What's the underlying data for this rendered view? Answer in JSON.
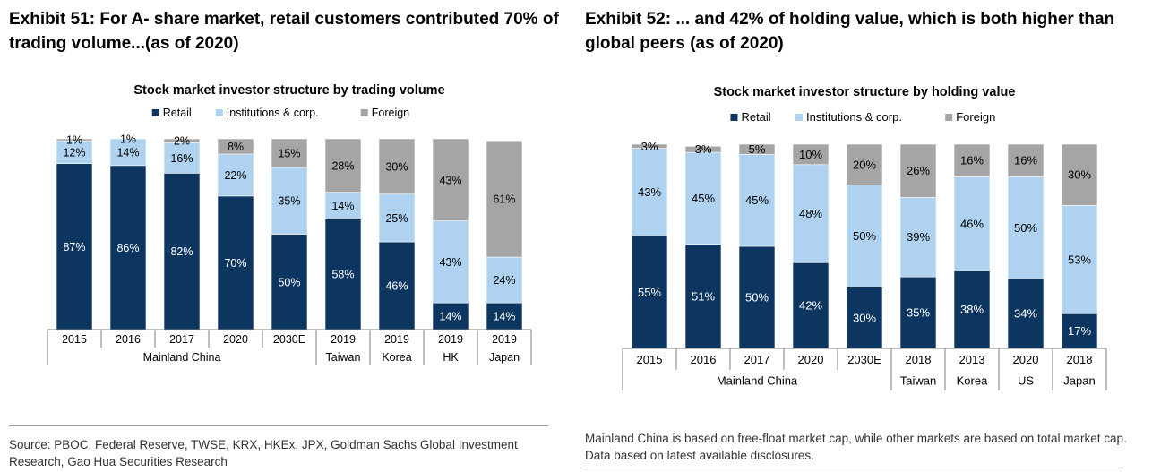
{
  "left": {
    "exhibit_title": "Exhibit 51: For A- share market, retail customers contributed 70% of trading volume...(as of 2020)",
    "footnote": "Source: PBOC, Federal Reserve, TWSE, KRX, HKEx, JPX, Goldman Sachs Global Investment Research, Gao Hua Securities Research"
  },
  "right": {
    "exhibit_title": "Exhibit 52: ... and 42% of holding value, which is both higher than global peers (as of 2020)",
    "footnote": "Mainland China is based on free-float market cap, while other markets are based on total market cap. Data based on latest available disclosures."
  },
  "colors": {
    "retail": "#0c3660",
    "institutions": "#aed2f0",
    "foreign": "#a5a5a5"
  },
  "chart_data": [
    {
      "type": "bar",
      "stacked": true,
      "title": "Stock market investor structure by trading volume",
      "legend": [
        "Retail",
        "Institutions & corp.",
        "Foreign"
      ],
      "legend_position": "top",
      "categories": [
        "2015",
        "2016",
        "2017",
        "2020",
        "2030E",
        "2019",
        "2019",
        "2019",
        "2019"
      ],
      "groups": [
        {
          "label": "Mainland China",
          "span": 5
        },
        {
          "label": "Taiwan",
          "span": 1
        },
        {
          "label": "Korea",
          "span": 1
        },
        {
          "label": "HK",
          "span": 1
        },
        {
          "label": "Japan",
          "span": 1
        }
      ],
      "series": [
        {
          "name": "Retail",
          "values": [
            87,
            86,
            82,
            70,
            50,
            58,
            46,
            14,
            14
          ]
        },
        {
          "name": "Institutions & corp.",
          "values": [
            12,
            14,
            16,
            22,
            35,
            14,
            25,
            43,
            24
          ]
        },
        {
          "name": "Foreign",
          "values": [
            1,
            1,
            2,
            8,
            15,
            28,
            30,
            43,
            61
          ]
        }
      ],
      "ylim": [
        0,
        100
      ]
    },
    {
      "type": "bar",
      "stacked": true,
      "title": "Stock market investor structure by holding value",
      "legend": [
        "Retail",
        "Institutions & corp.",
        "Foreign"
      ],
      "legend_position": "top",
      "categories": [
        "2015",
        "2016",
        "2017",
        "2020",
        "2030E",
        "2018",
        "2013",
        "2020",
        "2018"
      ],
      "groups": [
        {
          "label": "Mainland China",
          "span": 5
        },
        {
          "label": "Taiwan",
          "span": 1
        },
        {
          "label": "Korea",
          "span": 1
        },
        {
          "label": "US",
          "span": 1
        },
        {
          "label": "Japan",
          "span": 1
        }
      ],
      "series": [
        {
          "name": "Retail",
          "values": [
            55,
            51,
            50,
            42,
            30,
            35,
            38,
            34,
            17
          ]
        },
        {
          "name": "Institutions & corp.",
          "values": [
            43,
            45,
            45,
            48,
            50,
            39,
            46,
            50,
            53
          ]
        },
        {
          "name": "Foreign",
          "values": [
            3,
            3,
            5,
            10,
            20,
            26,
            16,
            16,
            30
          ]
        }
      ],
      "ylim": [
        0,
        100
      ]
    }
  ]
}
